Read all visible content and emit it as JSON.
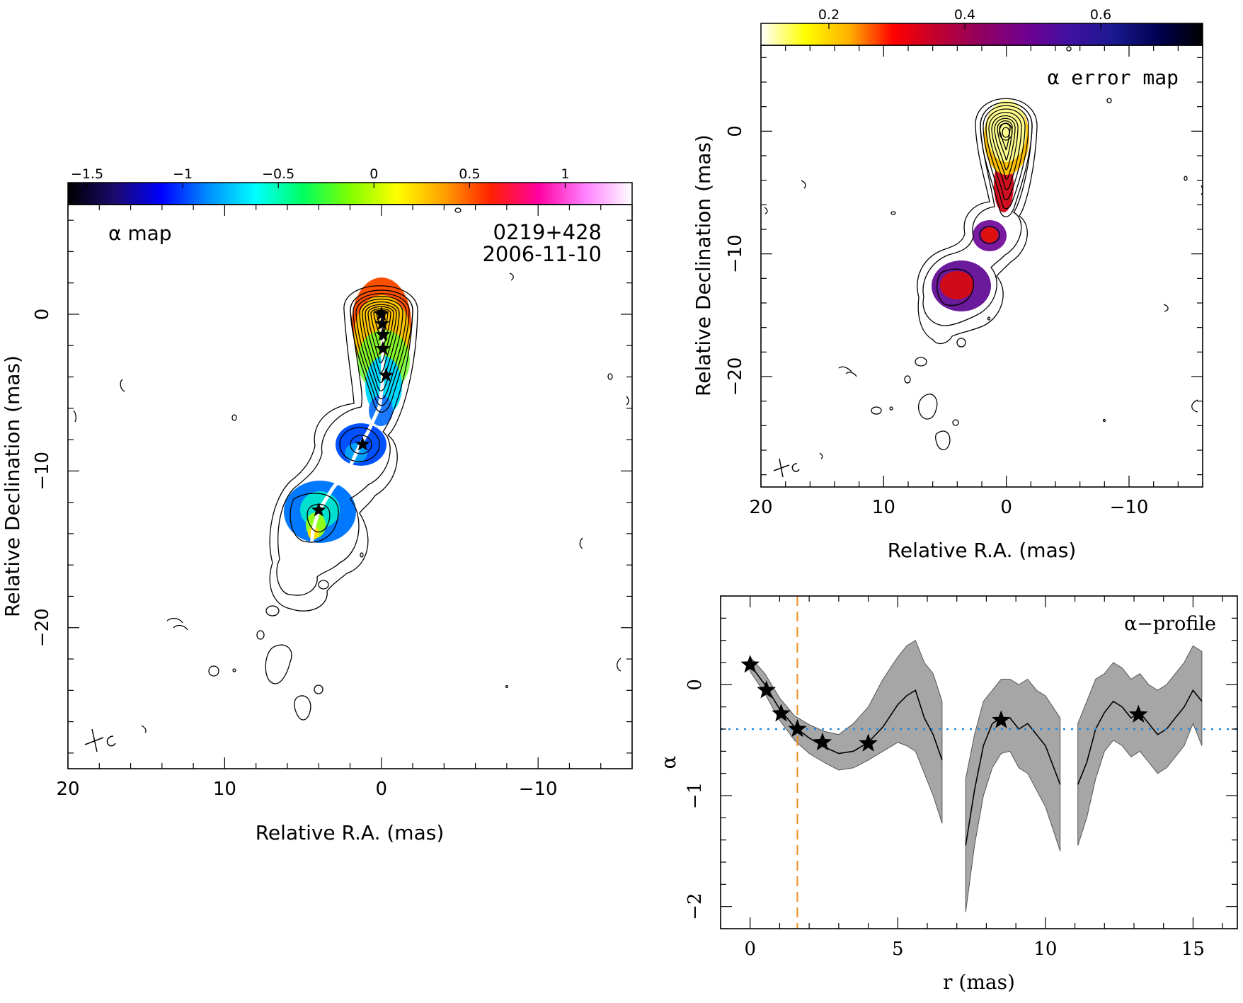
{
  "chart_data": [
    {
      "type": "heatmap",
      "panel": "alpha-map",
      "title": "α map",
      "source_label": "0219+428",
      "epoch_label": "2006-11-10",
      "xlabel": "Relative R.A. (mas)",
      "ylabel": "Relative Declination (mas)",
      "xlim": [
        20,
        -16
      ],
      "ylim": [
        -29,
        7
      ],
      "x_ticks": [
        20,
        10,
        0,
        -10
      ],
      "x_tick_labels": [
        "20",
        "10",
        "0",
        "−10"
      ],
      "y_ticks": [
        0,
        -10,
        -20
      ],
      "y_tick_labels": [
        "0",
        "−10",
        "−20"
      ],
      "colorbar": {
        "range": [
          -1.6,
          1.35
        ],
        "ticks": [
          -1.5,
          -1,
          -0.5,
          0,
          0.5,
          1
        ],
        "tick_labels": [
          "−1.5",
          "−1",
          "−0.5",
          "0",
          "0.5",
          "1"
        ],
        "colormap": [
          "#000000",
          "#1a0a6e",
          "#0000ff",
          "#0090ff",
          "#00ffff",
          "#00ff60",
          "#80ff00",
          "#ffff00",
          "#ffa000",
          "#ff2000",
          "#ff00a0",
          "#ff80ff",
          "#ffffff"
        ]
      },
      "star_markers": [
        {
          "ra": 0.0,
          "dec": 0.0
        },
        {
          "ra": -0.05,
          "dec": -0.6
        },
        {
          "ra": -0.1,
          "dec": -1.3
        },
        {
          "ra": -0.1,
          "dec": -2.2
        },
        {
          "ra": -0.3,
          "dec": -3.9
        },
        {
          "ra": 1.2,
          "dec": -8.3
        },
        {
          "ra": 4.0,
          "dec": -12.5
        }
      ]
    },
    {
      "type": "heatmap",
      "panel": "alpha-error-map",
      "title": "α error map",
      "xlabel": "Relative R.A. (mas)",
      "ylabel": "Relative Declination (mas)",
      "xlim": [
        20,
        -16
      ],
      "ylim": [
        -29,
        7
      ],
      "x_ticks": [
        20,
        10,
        0,
        -10
      ],
      "x_tick_labels": [
        "20",
        "10",
        "0",
        "−10"
      ],
      "y_ticks": [
        0,
        -10,
        -20
      ],
      "y_tick_labels": [
        "0",
        "−10",
        "−20"
      ],
      "colorbar": {
        "range": [
          0.1,
          0.75
        ],
        "ticks": [
          0.2,
          0.4,
          0.6
        ],
        "tick_labels": [
          "0.2",
          "0.4",
          "0.6"
        ],
        "colormap": [
          "#ffffff",
          "#ffff00",
          "#ffb000",
          "#ff0000",
          "#c00030",
          "#900060",
          "#700090",
          "#4010a0",
          "#1a1a90",
          "#000050",
          "#000000"
        ]
      }
    },
    {
      "type": "line",
      "panel": "alpha-profile",
      "title": "α−profile",
      "xlabel": "r (mas)",
      "ylabel": "α",
      "xlim": [
        -1,
        16.5
      ],
      "ylim": [
        -2.2,
        0.8
      ],
      "x_ticks": [
        0,
        5,
        10,
        15
      ],
      "x_tick_labels": [
        "0",
        "5",
        "10",
        "15"
      ],
      "y_ticks": [
        0,
        -1,
        -2
      ],
      "y_tick_labels": [
        "0",
        "−1",
        "−2"
      ],
      "reference_alpha": -0.4,
      "core_radius_marker": 1.6,
      "series": [
        {
          "x": [
            0,
            0.5,
            1,
            1.5,
            2,
            2.5,
            3,
            3.5,
            4,
            4.5,
            5,
            5.3,
            5.6,
            5.9,
            6.2,
            6.5
          ],
          "y": [
            0.18,
            0.0,
            -0.22,
            -0.38,
            -0.48,
            -0.56,
            -0.62,
            -0.6,
            -0.52,
            -0.38,
            -0.18,
            -0.1,
            -0.05,
            -0.3,
            -0.45,
            -0.68
          ],
          "lower": [
            0.12,
            -0.08,
            -0.32,
            -0.5,
            -0.62,
            -0.7,
            -0.77,
            -0.75,
            -0.68,
            -0.6,
            -0.52,
            -0.55,
            -0.6,
            -0.8,
            -1.0,
            -1.25
          ],
          "upper": [
            0.25,
            0.1,
            -0.12,
            -0.28,
            -0.36,
            -0.42,
            -0.45,
            -0.35,
            -0.2,
            0.05,
            0.25,
            0.35,
            0.4,
            0.2,
            0.1,
            -0.15
          ]
        },
        {
          "x": [
            7.3,
            7.6,
            7.9,
            8.2,
            8.5,
            8.8,
            9.1,
            9.4,
            9.7,
            10.0,
            10.5
          ],
          "y": [
            -1.45,
            -0.95,
            -0.55,
            -0.35,
            -0.3,
            -0.3,
            -0.4,
            -0.35,
            -0.45,
            -0.55,
            -0.9
          ],
          "lower": [
            -2.05,
            -1.45,
            -1.0,
            -0.75,
            -0.62,
            -0.6,
            -0.75,
            -0.8,
            -0.95,
            -1.1,
            -1.5
          ],
          "upper": [
            -0.85,
            -0.45,
            -0.15,
            -0.05,
            0.05,
            0.05,
            0.0,
            0.05,
            -0.05,
            -0.1,
            -0.3
          ]
        },
        {
          "x": [
            11.1,
            11.4,
            11.7,
            12.0,
            12.3,
            12.6,
            12.9,
            13.2,
            13.5,
            13.8,
            14.1,
            14.4,
            14.7,
            15.0,
            15.3
          ],
          "y": [
            -0.9,
            -0.7,
            -0.4,
            -0.25,
            -0.15,
            -0.2,
            -0.3,
            -0.25,
            -0.35,
            -0.45,
            -0.4,
            -0.3,
            -0.2,
            -0.05,
            -0.15
          ],
          "lower": [
            -1.45,
            -1.2,
            -0.85,
            -0.6,
            -0.5,
            -0.55,
            -0.65,
            -0.6,
            -0.7,
            -0.8,
            -0.75,
            -0.65,
            -0.55,
            -0.35,
            -0.55
          ],
          "upper": [
            -0.35,
            -0.15,
            0.05,
            0.1,
            0.2,
            0.15,
            0.05,
            0.1,
            0.0,
            -0.05,
            0.0,
            0.1,
            0.2,
            0.35,
            0.3
          ]
        }
      ],
      "star_points": [
        {
          "x": 0.0,
          "y": 0.18
        },
        {
          "x": 0.55,
          "y": -0.05
        },
        {
          "x": 1.05,
          "y": -0.26
        },
        {
          "x": 1.6,
          "y": -0.4
        },
        {
          "x": 2.45,
          "y": -0.52
        },
        {
          "x": 4.0,
          "y": -0.53
        },
        {
          "x": 8.5,
          "y": -0.32
        },
        {
          "x": 13.15,
          "y": -0.27
        }
      ]
    }
  ]
}
